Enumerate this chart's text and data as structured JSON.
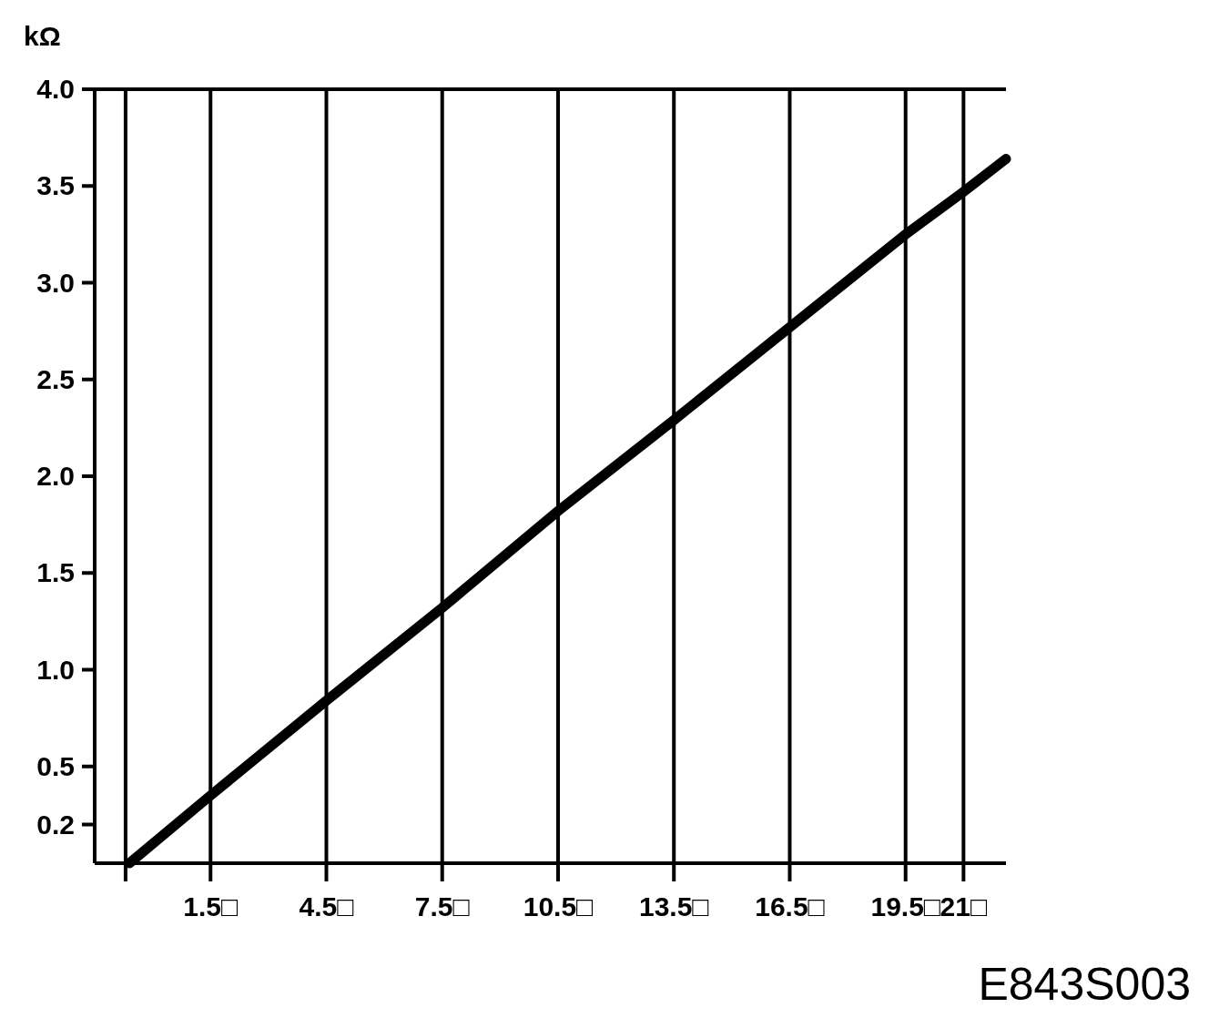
{
  "chart_data": {
    "type": "line",
    "ylabel": "kΩ",
    "annotations": [
      "E843S003"
    ],
    "x": [
      -0.6,
      1.5,
      4.5,
      7.5,
      10.5,
      13.5,
      16.5,
      19.5,
      21,
      22.1
    ],
    "series": [
      {
        "color": "#000000",
        "values": [
          0.0,
          0.35,
          0.84,
          1.32,
          1.82,
          2.29,
          2.77,
          3.25,
          3.47,
          3.64
        ]
      }
    ],
    "xlim": [
      -1.5,
      22.1
    ],
    "xticks": [
      {
        "value": -0.7,
        "label": null
      },
      {
        "value": 1.5,
        "label": "1.5□"
      },
      {
        "value": 4.5,
        "label": "4.5□"
      },
      {
        "value": 7.5,
        "label": "7.5□"
      },
      {
        "value": 10.5,
        "label": "10.5□"
      },
      {
        "value": 13.5,
        "label": "13.5□"
      },
      {
        "value": 16.5,
        "label": "16.5□"
      },
      {
        "value": 19.5,
        "label": "19.5□"
      },
      {
        "value": 21,
        "label": "21□"
      }
    ],
    "ylim": [
      0,
      4
    ],
    "yticks": [
      0.2,
      {
        "value": 0.5,
        "label": "0.5"
      },
      {
        "value": 1,
        "label": "1.0"
      },
      {
        "value": 1.5,
        "label": "1.5"
      },
      {
        "value": 2,
        "label": "2.0"
      },
      {
        "value": 2.5,
        "label": "2.5"
      },
      {
        "value": 3,
        "label": "3.0"
      },
      {
        "value": 3.5,
        "label": "3.5"
      },
      {
        "value": 4,
        "label": "4.0"
      }
    ],
    "grid": "x",
    "marker": "none",
    "line_style": "solid"
  }
}
